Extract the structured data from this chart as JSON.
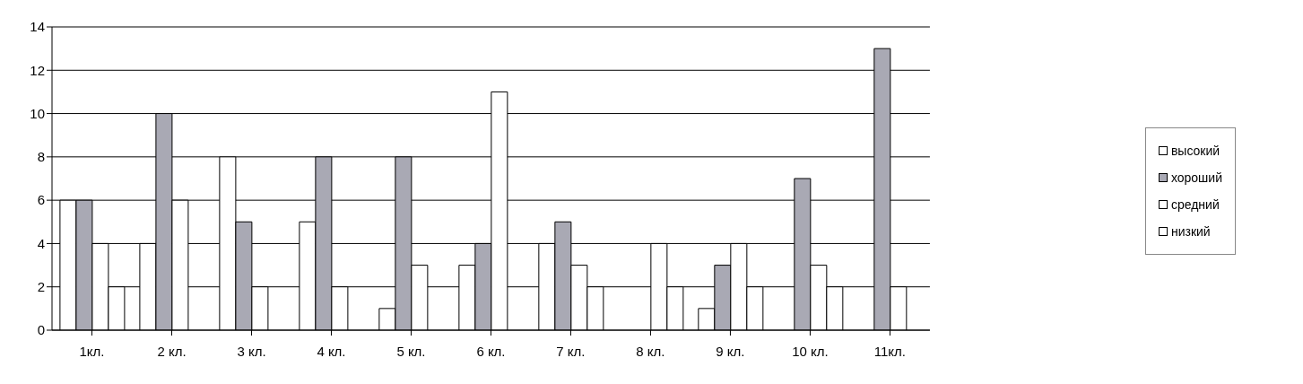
{
  "chart_data": {
    "type": "bar",
    "categories": [
      "1кл.",
      "2 кл.",
      "3 кл.",
      "4 кл.",
      "5 кл.",
      "6 кл.",
      "7 кл.",
      "8 кл.",
      "9 кл.",
      "10 кл.",
      "11кл."
    ],
    "series": [
      {
        "name": "высокий",
        "color": "#ffffff",
        "values": [
          6,
          4,
          8,
          5,
          1,
          3,
          4,
          0,
          1,
          0,
          0
        ]
      },
      {
        "name": "хороший",
        "color": "#a9a9b4",
        "values": [
          6,
          10,
          5,
          8,
          8,
          4,
          5,
          0,
          3,
          7,
          13
        ]
      },
      {
        "name": "средний",
        "color": "#ffffff",
        "values": [
          4,
          6,
          2,
          2,
          3,
          11,
          3,
          4,
          4,
          3,
          2
        ]
      },
      {
        "name": "низкий",
        "color": "#ffffff",
        "values": [
          2,
          0,
          0,
          0,
          0,
          0,
          2,
          2,
          2,
          2,
          0
        ]
      }
    ],
    "ylim": [
      0,
      14
    ],
    "yticks": [
      0,
      2,
      4,
      6,
      8,
      10,
      12,
      14
    ],
    "grid": "y",
    "legend": "right"
  }
}
